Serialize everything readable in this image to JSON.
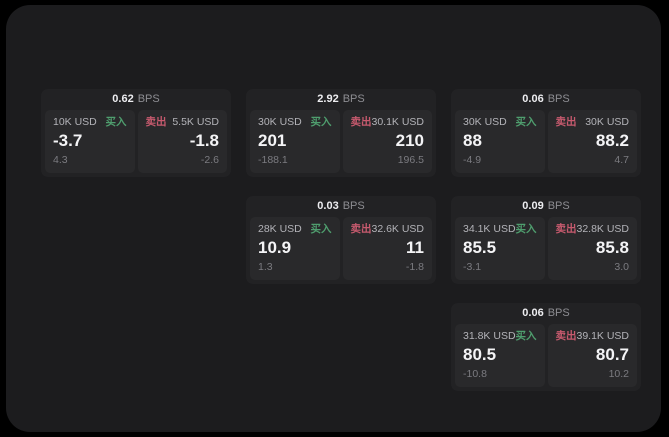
{
  "labels": {
    "bps_suffix": "BPS",
    "buy": "买入",
    "sell": "卖出"
  },
  "colors": {
    "background": "#000000",
    "panel": "#1c1c1e",
    "card": "#222224",
    "tile": "#29292b",
    "buy_text": "#4f9e6e",
    "sell_text": "#c75a6e",
    "price_text": "#f4f4f6",
    "muted_text": "#7b7b80"
  },
  "cards": [
    {
      "bps": "0.62",
      "buy": {
        "amount": "10K USD",
        "price": "-3.7",
        "delta": "4.3"
      },
      "sell": {
        "amount": "5.5K USD",
        "price": "-1.8",
        "delta": "-2.6"
      }
    },
    {
      "bps": "2.92",
      "buy": {
        "amount": "30K USD",
        "price": "201",
        "delta": "-188.1"
      },
      "sell": {
        "amount": "30.1K USD",
        "price": "210",
        "delta": "196.5"
      }
    },
    {
      "bps": "0.06",
      "buy": {
        "amount": "30K USD",
        "price": "88",
        "delta": "-4.9"
      },
      "sell": {
        "amount": "30K USD",
        "price": "88.2",
        "delta": "4.7"
      }
    },
    {
      "bps": "0.03",
      "buy": {
        "amount": "28K USD",
        "price": "10.9",
        "delta": "1.3"
      },
      "sell": {
        "amount": "32.6K USD",
        "price": "11",
        "delta": "-1.8"
      }
    },
    {
      "bps": "0.09",
      "buy": {
        "amount": "34.1K USD",
        "price": "85.5",
        "delta": "-3.1"
      },
      "sell": {
        "amount": "32.8K USD",
        "price": "85.8",
        "delta": "3.0"
      }
    },
    {
      "bps": "0.06",
      "buy": {
        "amount": "31.8K USD",
        "price": "80.5",
        "delta": "-10.8"
      },
      "sell": {
        "amount": "39.1K USD",
        "price": "80.7",
        "delta": "10.2"
      }
    }
  ]
}
